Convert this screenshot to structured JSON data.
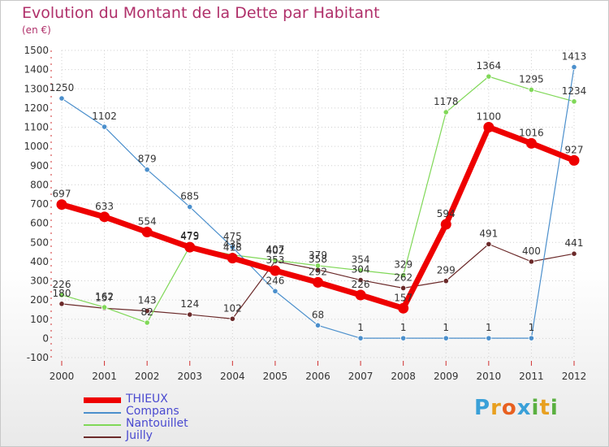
{
  "header": {
    "title": "Evolution du Montant de la Dette par Habitant",
    "subtitle": "(en €)"
  },
  "logo": {
    "letters": [
      "P",
      "r",
      "o",
      "x",
      "i",
      "t",
      "i"
    ],
    "colors": [
      "#3aa0d8",
      "#e8a020",
      "#e86020",
      "#3aa0d8",
      "#5ab040",
      "#e8a020",
      "#5ab040"
    ]
  },
  "chart_data": {
    "type": "line",
    "title": "Evolution du Montant de la Dette par Habitant",
    "subtitle": "(en €)",
    "x": [
      "2000",
      "2001",
      "2002",
      "2003",
      "2004",
      "2005",
      "2006",
      "2007",
      "2008",
      "2009",
      "2010",
      "2011",
      "2012"
    ],
    "ylim": [
      -100,
      1500
    ],
    "yticks": [
      -100,
      0,
      100,
      200,
      300,
      400,
      500,
      600,
      700,
      800,
      900,
      1000,
      1100,
      1200,
      1300,
      1400,
      1500
    ],
    "grid": true,
    "legend_position": "bottom-left",
    "series": [
      {
        "name": "THIEUX",
        "color": "#ee0000",
        "values": [
          697,
          633,
          554,
          475,
          418,
          353,
          292,
          226,
          157,
          594,
          1100,
          1016,
          927
        ]
      },
      {
        "name": "Compans",
        "color": "#4b8fcc",
        "values": [
          1250,
          1102,
          879,
          685,
          475,
          246,
          68,
          1,
          1,
          1,
          1,
          1,
          1413
        ]
      },
      {
        "name": "Nantouillet",
        "color": "#80d858",
        "values": [
          226,
          162,
          82,
          479,
          435,
          407,
          379,
          354,
          329,
          1178,
          1364,
          1295,
          1234
        ]
      },
      {
        "name": "Juilly",
        "color": "#6b2a2a",
        "values": [
          180,
          157,
          143,
          124,
          102,
          402,
          358,
          304,
          262,
          299,
          491,
          400,
          441
        ]
      }
    ]
  }
}
